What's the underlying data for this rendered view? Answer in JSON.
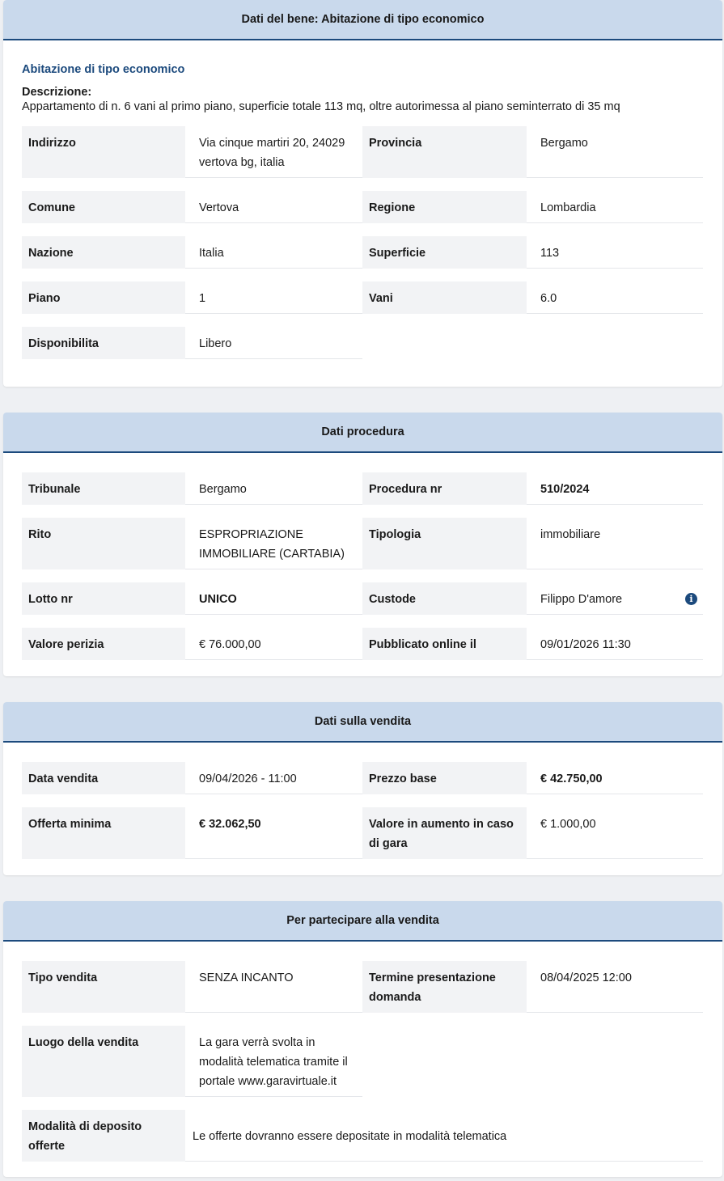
{
  "sections": [
    {
      "title": "Dati del bene: Abitazione di tipo economico",
      "subtitle": "Abitazione di tipo economico",
      "description_label": "Descrizione:",
      "description": "Appartamento di n. 6 vani al primo piano, superficie totale 113 mq, oltre autorimessa al piano seminterrato di 35 mq",
      "rows": [
        [
          {
            "label": "Indirizzo",
            "value": "Via cinque martiri 20, 24029 vertova bg, italia"
          },
          {
            "label": "Provincia",
            "value": "Bergamo"
          }
        ],
        [
          {
            "label": "Comune",
            "value": "Vertova"
          },
          {
            "label": "Regione",
            "value": "Lombardia"
          }
        ],
        [
          {
            "label": "Nazione",
            "value": "Italia"
          },
          {
            "label": "Superficie",
            "value": "113"
          }
        ],
        [
          {
            "label": "Piano",
            "value": "1"
          },
          {
            "label": "Vani",
            "value": "6.0"
          }
        ],
        [
          {
            "label": "Disponibilita",
            "value": "Libero"
          }
        ]
      ]
    },
    {
      "title": "Dati procedura",
      "rows": [
        [
          {
            "label": "Tribunale",
            "value": "Bergamo"
          },
          {
            "label": "Procedura nr",
            "value": "510/2024",
            "bold": true
          }
        ],
        [
          {
            "label": "Rito",
            "value": "ESPROPRIAZIONE IMMOBILIARE (CARTABIA)"
          },
          {
            "label": "Tipologia",
            "value": "immobiliare"
          }
        ],
        [
          {
            "label": "Lotto nr",
            "value": "UNICO",
            "bold": true
          },
          {
            "label": "Custode",
            "value": "Filippo D'amore",
            "icon": "info-icon"
          }
        ],
        [
          {
            "label": "Valore perizia",
            "value": "€ 76.000,00"
          },
          {
            "label": "Pubblicato online il",
            "value": "09/01/2026 11:30"
          }
        ]
      ]
    },
    {
      "title": "Dati sulla vendita",
      "rows": [
        [
          {
            "label": "Data vendita",
            "value": "09/04/2026 - 11:00"
          },
          {
            "label": "Prezzo base",
            "value": "€ 42.750,00",
            "bold": true
          }
        ],
        [
          {
            "label": "Offerta minima",
            "value": "€ 32.062,50",
            "bold": true
          },
          {
            "label": "Valore in aumento in caso di gara",
            "value": "€ 1.000,00"
          }
        ]
      ]
    },
    {
      "title": "Per partecipare alla vendita",
      "rows": [
        [
          {
            "label": "Tipo vendita",
            "value": "SENZA INCANTO"
          },
          {
            "label": "Termine presentazione domanda",
            "value": "08/04/2025 12:00"
          }
        ],
        [
          {
            "label": "Luogo della vendita",
            "value": "La gara verrà svolta in modalità telematica tramite il portale www.garavirtuale.it"
          }
        ],
        [
          {
            "label": "Modalità di deposito offerte",
            "value": "Le offerte dovranno essere depositate in modalità telematica",
            "wide": true
          }
        ]
      ]
    }
  ],
  "colors": {
    "header_bg": "#c9d9ec",
    "accent": "#1c4a7d",
    "label_bg": "#f2f3f5",
    "page_bg": "#eef0f3"
  }
}
